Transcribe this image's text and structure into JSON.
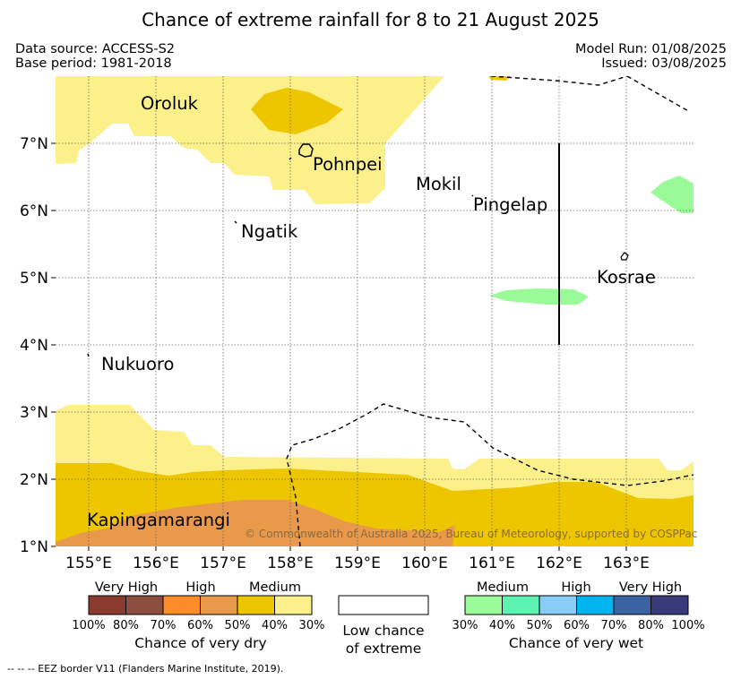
{
  "title": "Chance of extreme rainfall for 8 to 21 August 2025",
  "header": {
    "data_source": "Data source: ACCESS-S2",
    "base_period": "Base period: 1981-2018",
    "model_run": "Model Run: 01/08/2025",
    "issued": "Issued: 03/08/2025"
  },
  "map": {
    "x_ticks": [
      "155°E",
      "156°E",
      "157°E",
      "158°E",
      "159°E",
      "160°E",
      "161°E",
      "162°E",
      "163°E"
    ],
    "y_ticks": [
      "7°N",
      "6°N",
      "5°N",
      "4°N",
      "3°N",
      "2°N",
      "1°N"
    ],
    "places": {
      "oroluk": "Oroluk",
      "pohnpei": "Pohnpei",
      "mokil": "Mokil",
      "pingelap": "Pingelap",
      "ngatik": "Ngatik",
      "kosrae": "Kosrae",
      "nukuoro": "Nukuoro",
      "kapingamarangi": "Kapingamarangi"
    },
    "copyright": "© Commonwealth of Australia 2025, Bureau of Meteorology, supported by COSPPac"
  },
  "legend": {
    "dry": {
      "classes": [
        "Very High",
        "High",
        "Medium"
      ],
      "percents": [
        "100%",
        "80%",
        "70%",
        "60%",
        "50%",
        "40%",
        "30%"
      ],
      "colors": [
        "#8b3a2f",
        "#8c4f3f",
        "#ff8c2a",
        "#e9994a",
        "#edc600",
        "#fbf08a"
      ],
      "caption": "Chance of very dry"
    },
    "neutral": {
      "line1": "Low chance",
      "line2": "of extreme"
    },
    "wet": {
      "classes": [
        "Medium",
        "High",
        "Very High"
      ],
      "percents": [
        "30%",
        "40%",
        "50%",
        "60%",
        "70%",
        "80%",
        "100%"
      ],
      "colors": [
        "#99fb98",
        "#5cf4b0",
        "#87cdf8",
        "#00b4ef",
        "#3a63a3",
        "#383a79"
      ],
      "caption": "Chance of very wet"
    }
  },
  "footnote": "--  --  -- EEZ border V11 (Flanders Marine Institute, 2019)."
}
